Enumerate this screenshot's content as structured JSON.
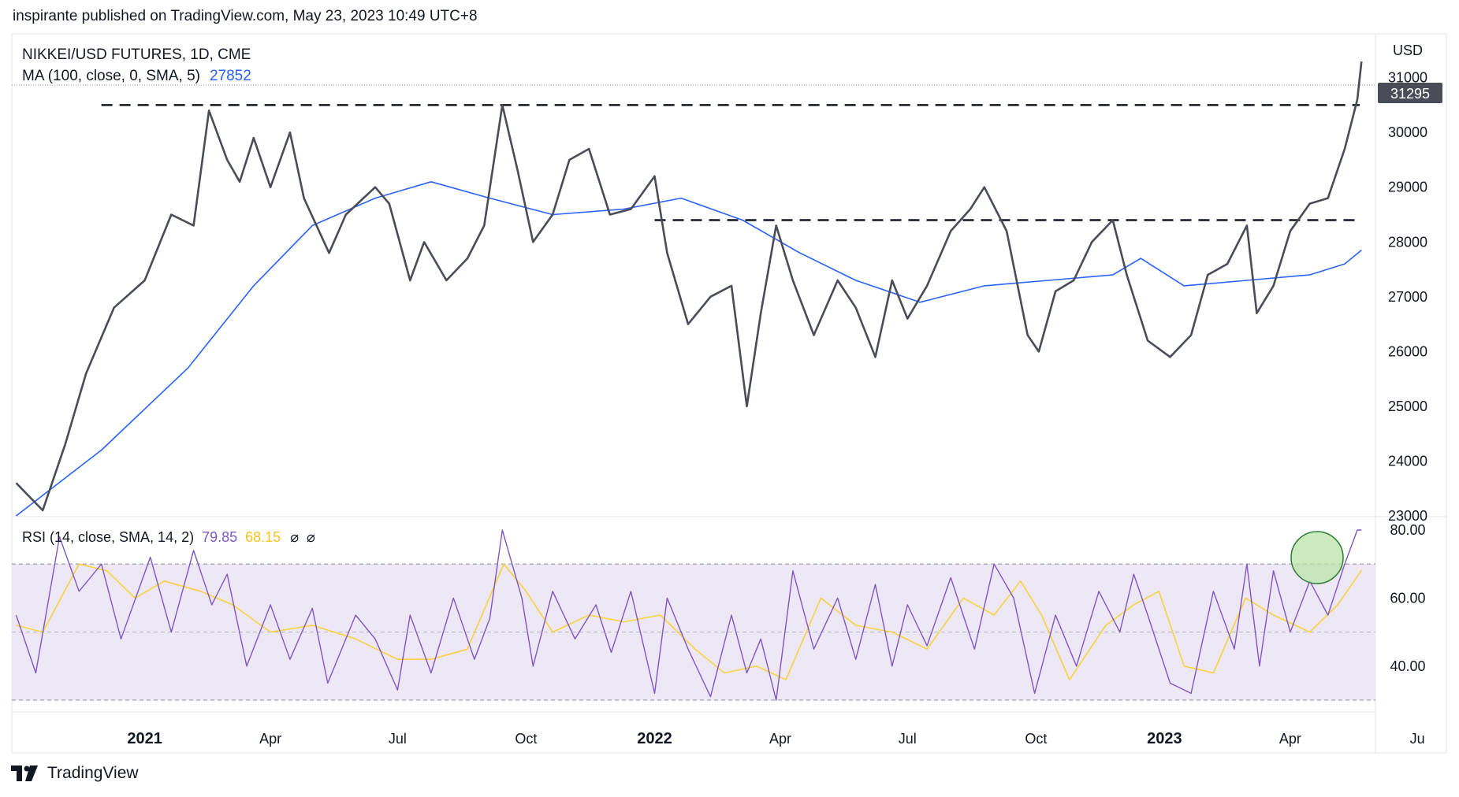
{
  "header": {
    "published": "inspirante published on TradingView.com, May 23, 2023 10:49 UTC+8"
  },
  "legend": {
    "symbol": "NIKKEI/USD FUTURES, 1D, CME",
    "ma_label": "MA (100, close, 0, SMA, 5)",
    "ma_value": "27852",
    "rsi_label": "RSI (14, close, SMA, 14, 2)",
    "rsi_value": "79.85",
    "rsi_ma_value": "68.15",
    "empty_1": "⌀",
    "empty_2": "⌀"
  },
  "currency": "USD",
  "last_price_tag": "31295",
  "footer": {
    "brand": "TradingView"
  },
  "colors": {
    "price": "#4a4c57",
    "ma": "#2962ff",
    "rsi": "#7e57c2",
    "rsi_ma": "#f7d33e",
    "rsi_band": "#ede7f6",
    "highlight": "#b9e4a8",
    "highlight_stroke": "#2e7d32",
    "tag": "#4a4c57"
  },
  "chart_data": [
    {
      "type": "line",
      "title": "NIKKEI/USD FUTURES, 1D, CME",
      "x_labels": [
        "2021",
        "Apr",
        "Jul",
        "Oct",
        "2022",
        "Apr",
        "Jul",
        "Oct",
        "2023",
        "Apr",
        "Ju"
      ],
      "y_ticks": [
        23000,
        24000,
        25000,
        26000,
        27000,
        28000,
        29000,
        30000,
        31000
      ],
      "ylim": [
        23000,
        31800
      ],
      "horizontal_levels": [
        {
          "value": 30500,
          "from": "2020-12",
          "to": "2023-06",
          "style": "dashed"
        },
        {
          "value": 28400,
          "from": "2022-01",
          "to": "2023-06",
          "style": "dashed"
        }
      ],
      "series": [
        {
          "name": "NIKKEI/USD FUTURES",
          "x": [
            "2020-10-01",
            "2020-10-20",
            "2020-11-05",
            "2020-11-20",
            "2020-12-10",
            "2021-01-01",
            "2021-01-20",
            "2021-02-05",
            "2021-02-16",
            "2021-03-01",
            "2021-03-10",
            "2021-03-20",
            "2021-04-01",
            "2021-04-15",
            "2021-04-25",
            "2021-05-13",
            "2021-05-25",
            "2021-06-15",
            "2021-06-25",
            "2021-07-10",
            "2021-07-20",
            "2021-08-05",
            "2021-08-20",
            "2021-09-01",
            "2021-09-14",
            "2021-09-25",
            "2021-10-06",
            "2021-10-20",
            "2021-11-01",
            "2021-11-15",
            "2021-11-30",
            "2021-12-15",
            "2022-01-01",
            "2022-01-10",
            "2022-01-25",
            "2022-02-10",
            "2022-02-25",
            "2022-03-08",
            "2022-03-18",
            "2022-03-29",
            "2022-04-10",
            "2022-04-25",
            "2022-05-12",
            "2022-05-25",
            "2022-06-08",
            "2022-06-20",
            "2022-07-01",
            "2022-07-15",
            "2022-08-01",
            "2022-08-15",
            "2022-08-25",
            "2022-09-10",
            "2022-09-25",
            "2022-10-03",
            "2022-10-15",
            "2022-10-28",
            "2022-11-10",
            "2022-11-25",
            "2022-12-05",
            "2022-12-20",
            "2023-01-05",
            "2023-01-20",
            "2023-02-01",
            "2023-02-15",
            "2023-03-01",
            "2023-03-08",
            "2023-03-20",
            "2023-04-01",
            "2023-04-15",
            "2023-04-28",
            "2023-05-10",
            "2023-05-19",
            "2023-05-22"
          ],
          "values": [
            23600,
            23100,
            24300,
            25600,
            26800,
            27300,
            28500,
            28300,
            30400,
            29500,
            29100,
            29900,
            29000,
            30000,
            28800,
            27800,
            28500,
            29000,
            28700,
            27300,
            28000,
            27300,
            27700,
            28300,
            30500,
            29300,
            28000,
            28500,
            29500,
            29700,
            28500,
            28600,
            29200,
            27800,
            26500,
            27000,
            27200,
            25000,
            26700,
            28300,
            27300,
            26300,
            27300,
            26800,
            25900,
            27300,
            26600,
            27200,
            28200,
            28600,
            29000,
            28200,
            26300,
            26000,
            27100,
            27300,
            28000,
            28400,
            27400,
            26200,
            25900,
            26300,
            27400,
            27600,
            28300,
            26700,
            27200,
            28200,
            28700,
            28800,
            29700,
            30600,
            31295
          ]
        },
        {
          "name": "MA (100, close, 0, SMA, 5)",
          "x": [
            "2020-10-01",
            "2020-12-01",
            "2021-02-01",
            "2021-03-20",
            "2021-05-01",
            "2021-06-15",
            "2021-07-25",
            "2021-09-05",
            "2021-10-20",
            "2021-12-10",
            "2022-01-20",
            "2022-03-05",
            "2022-04-15",
            "2022-05-25",
            "2022-07-10",
            "2022-08-25",
            "2022-10-10",
            "2022-11-25",
            "2022-12-15",
            "2023-01-15",
            "2023-03-01",
            "2023-04-15",
            "2023-05-10",
            "2023-05-22"
          ],
          "values": [
            23000,
            24200,
            25700,
            27200,
            28300,
            28800,
            29100,
            28800,
            28500,
            28600,
            28800,
            28400,
            27800,
            27300,
            26900,
            27200,
            27300,
            27400,
            27700,
            27200,
            27300,
            27400,
            27600,
            27852
          ]
        }
      ]
    },
    {
      "type": "line",
      "title": "RSI (14, close, SMA, 14, 2)",
      "y_ticks": [
        40,
        60,
        80
      ],
      "ylim": [
        27,
        83
      ],
      "band": [
        30,
        70
      ],
      "midline": 50,
      "series": [
        {
          "name": "RSI",
          "x": [
            "2020-10-01",
            "2020-10-15",
            "2020-11-01",
            "2020-11-15",
            "2020-12-01",
            "2020-12-15",
            "2021-01-05",
            "2021-01-20",
            "2021-02-05",
            "2021-02-18",
            "2021-03-01",
            "2021-03-15",
            "2021-04-01",
            "2021-04-15",
            "2021-05-01",
            "2021-05-12",
            "2021-06-01",
            "2021-06-15",
            "2021-07-01",
            "2021-07-10",
            "2021-07-25",
            "2021-08-10",
            "2021-08-25",
            "2021-09-05",
            "2021-09-14",
            "2021-09-28",
            "2021-10-06",
            "2021-10-20",
            "2021-11-05",
            "2021-11-20",
            "2021-12-01",
            "2021-12-15",
            "2022-01-01",
            "2022-01-10",
            "2022-01-25",
            "2022-02-10",
            "2022-02-25",
            "2022-03-08",
            "2022-03-18",
            "2022-03-29",
            "2022-04-10",
            "2022-04-25",
            "2022-05-12",
            "2022-05-25",
            "2022-06-08",
            "2022-06-20",
            "2022-07-01",
            "2022-07-15",
            "2022-08-01",
            "2022-08-18",
            "2022-09-01",
            "2022-09-15",
            "2022-09-30",
            "2022-10-15",
            "2022-10-30",
            "2022-11-15",
            "2022-11-30",
            "2022-12-10",
            "2022-12-20",
            "2023-01-05",
            "2023-01-20",
            "2023-02-05",
            "2023-02-20",
            "2023-03-01",
            "2023-03-10",
            "2023-03-20",
            "2023-04-01",
            "2023-04-15",
            "2023-04-28",
            "2023-05-10",
            "2023-05-19",
            "2023-05-22"
          ],
          "values": [
            55,
            38,
            78,
            62,
            70,
            48,
            72,
            50,
            74,
            58,
            67,
            40,
            58,
            42,
            57,
            35,
            55,
            48,
            33,
            55,
            38,
            60,
            42,
            54,
            80,
            60,
            40,
            62,
            48,
            58,
            44,
            62,
            32,
            60,
            45,
            31,
            55,
            38,
            48,
            30,
            68,
            45,
            60,
            42,
            64,
            40,
            58,
            46,
            66,
            45,
            70,
            60,
            32,
            55,
            40,
            62,
            50,
            67,
            55,
            35,
            32,
            62,
            45,
            70,
            40,
            68,
            50,
            65,
            55,
            70,
            80,
            80
          ]
        },
        {
          "name": "RSI MA",
          "x": [
            "2020-10-01",
            "2020-10-20",
            "2020-11-15",
            "2020-12-05",
            "2020-12-25",
            "2021-01-15",
            "2021-02-10",
            "2021-03-05",
            "2021-04-01",
            "2021-05-01",
            "2021-06-01",
            "2021-07-01",
            "2021-07-25",
            "2021-08-20",
            "2021-09-15",
            "2021-10-01",
            "2021-10-20",
            "2021-11-15",
            "2021-12-10",
            "2022-01-05",
            "2022-01-30",
            "2022-02-20",
            "2022-03-15",
            "2022-04-05",
            "2022-04-30",
            "2022-05-25",
            "2022-06-20",
            "2022-07-15",
            "2022-08-10",
            "2022-09-01",
            "2022-09-20",
            "2022-10-05",
            "2022-10-25",
            "2022-11-20",
            "2022-12-10",
            "2022-12-28",
            "2023-01-15",
            "2023-02-05",
            "2023-02-28",
            "2023-03-20",
            "2023-04-15",
            "2023-05-05",
            "2023-05-22"
          ],
          "values": [
            52,
            50,
            70,
            68,
            60,
            65,
            62,
            58,
            50,
            52,
            48,
            42,
            42,
            45,
            70,
            62,
            50,
            55,
            53,
            55,
            45,
            38,
            40,
            36,
            60,
            52,
            50,
            45,
            60,
            55,
            65,
            55,
            36,
            52,
            58,
            62,
            40,
            38,
            60,
            55,
            50,
            58,
            68.15
          ]
        }
      ]
    }
  ]
}
